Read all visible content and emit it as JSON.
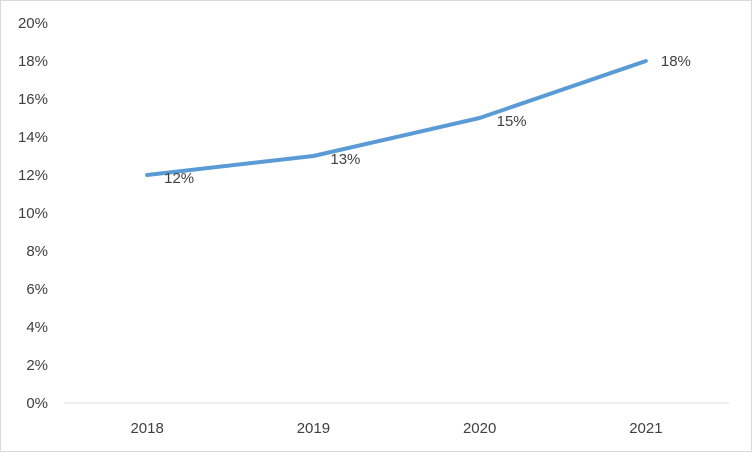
{
  "chart_data": {
    "type": "line",
    "categories": [
      "2018",
      "2019",
      "2020",
      "2021"
    ],
    "series": [
      {
        "values": [
          12,
          13,
          15,
          18
        ],
        "color": "#5b9bd5"
      }
    ],
    "data_labels": [
      "12%",
      "13%",
      "15%",
      "18%"
    ],
    "y_ticks": [
      "0%",
      "2%",
      "4%",
      "6%",
      "8%",
      "10%",
      "12%",
      "14%",
      "16%",
      "18%",
      "20%"
    ],
    "ylim": [
      0,
      20
    ],
    "y_unit": "%",
    "grid": false,
    "legend": "none",
    "title": "",
    "xlabel": "",
    "ylabel": ""
  }
}
